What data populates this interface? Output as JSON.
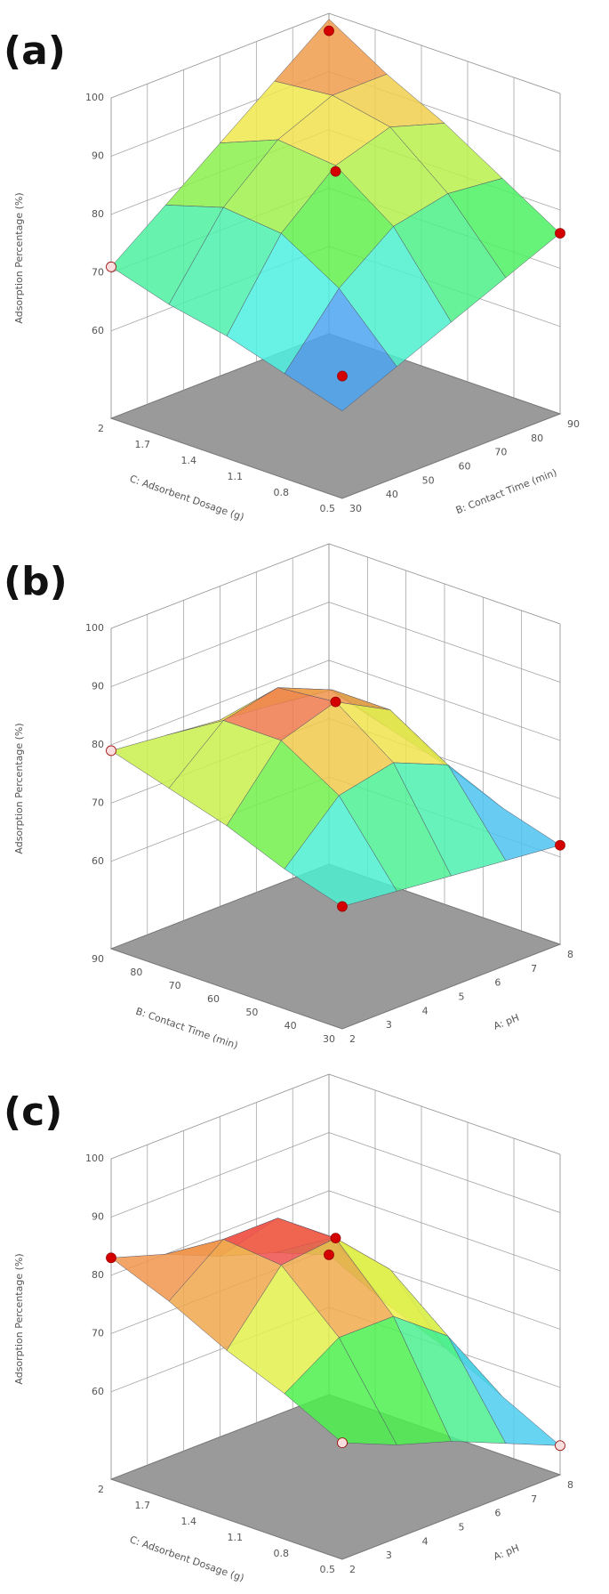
{
  "chart_data": [
    {
      "type": "surface",
      "panel_label": "(a)",
      "z_label": "Adsorption Percentage (%)",
      "x_label": "C: Adsorbent Dosage  (g)",
      "xlim": [
        0.5,
        2
      ],
      "xticks": [
        0.5,
        0.8,
        1.1,
        1.4,
        1.7,
        2
      ],
      "y_label": "B: Contact Time  (min)",
      "ylim": [
        30,
        90
      ],
      "yticks": [
        30,
        40,
        50,
        60,
        70,
        80,
        90
      ],
      "zlim": [
        45,
        100
      ],
      "zticks": [
        60,
        70,
        80,
        90,
        100
      ],
      "surface_x": [
        0.5,
        0.875,
        1.25,
        1.625,
        2
      ],
      "surface_y": [
        30,
        45,
        60,
        75,
        90
      ],
      "surface_z": [
        [
          60,
          64,
          68,
          72,
          76
        ],
        [
          63,
          74,
          81,
          83,
          82
        ],
        [
          66,
          80,
          88,
          91,
          88
        ],
        [
          68,
          81,
          89,
          93,
          93
        ],
        [
          71,
          78,
          85,
          92,
          99
        ]
      ],
      "points": {
        "x": [
          0.5,
          2,
          0.5,
          2,
          1.25
        ],
        "y": [
          30,
          30,
          90,
          90,
          60
        ],
        "z": [
          66,
          71,
          76,
          97,
          87
        ],
        "colors": [
          "#d40000",
          "#f8dede",
          "#d40000",
          "#d40000",
          "#d40000"
        ]
      }
    },
    {
      "type": "surface",
      "panel_label": "(b)",
      "z_label": "Adsorption Percentage  (%)",
      "x_label": "B: Contact Time  (min)",
      "xlim": [
        30,
        90
      ],
      "xticks": [
        30,
        40,
        50,
        60,
        70,
        80,
        90
      ],
      "y_label": "A: pH",
      "ylim": [
        2,
        8
      ],
      "yticks": [
        2,
        3,
        4,
        5,
        6,
        7,
        8
      ],
      "zlim": [
        45,
        100
      ],
      "zticks": [
        60,
        70,
        80,
        90,
        100
      ],
      "surface_x": [
        30,
        45,
        60,
        75,
        90
      ],
      "surface_y": [
        2,
        3.5,
        5,
        6.5,
        8
      ],
      "surface_z": [
        [
          66,
          65,
          64,
          63,
          62
        ],
        [
          69,
          78,
          80,
          76,
          65
        ],
        [
          73,
          84,
          87,
          82,
          69
        ],
        [
          76,
          84,
          86,
          82,
          72
        ],
        [
          79,
          78,
          77,
          76,
          75
        ]
      ],
      "points": {
        "x": [
          30,
          90,
          30,
          60
        ],
        "y": [
          2,
          2,
          8,
          5
        ],
        "z": [
          66,
          79,
          62,
          87
        ],
        "colors": [
          "#d40000",
          "#f8dede",
          "#d40000",
          "#d40000"
        ]
      }
    },
    {
      "type": "surface",
      "panel_label": "(c)",
      "z_label": "Adsorption Percentage  (%)",
      "x_label": "C: Adsorbent Dosage  (g)",
      "xlim": [
        0.5,
        2
      ],
      "xticks": [
        0.5,
        0.8,
        1.1,
        1.4,
        1.7,
        2
      ],
      "y_label": "A: pH",
      "ylim": [
        2,
        8
      ],
      "yticks": [
        2,
        3,
        4,
        5,
        6,
        7,
        8
      ],
      "zlim": [
        45,
        100
      ],
      "zticks": [
        60,
        70,
        80,
        90,
        100
      ],
      "surface_x": [
        0.5,
        0.875,
        1.25,
        1.625,
        2
      ],
      "surface_y": [
        2,
        3.5,
        5,
        6.5,
        8
      ],
      "surface_z": [
        [
          65,
          61,
          58,
          54,
          50
        ],
        [
          70,
          76,
          76,
          69,
          55
        ],
        [
          74,
          85,
          86,
          77,
          60
        ],
        [
          79,
          86,
          86,
          79,
          64
        ],
        [
          83,
          80,
          76,
          73,
          69
        ]
      ],
      "points": {
        "x": [
          0.5,
          2,
          0.5,
          2,
          1.25
        ],
        "y": [
          2,
          2,
          8,
          8,
          5
        ],
        "z": [
          65,
          83,
          50,
          69,
          86
        ],
        "colors": [
          "#f8dede",
          "#d40000",
          "#f8dede",
          "#d40000",
          "#d40000"
        ]
      }
    }
  ]
}
